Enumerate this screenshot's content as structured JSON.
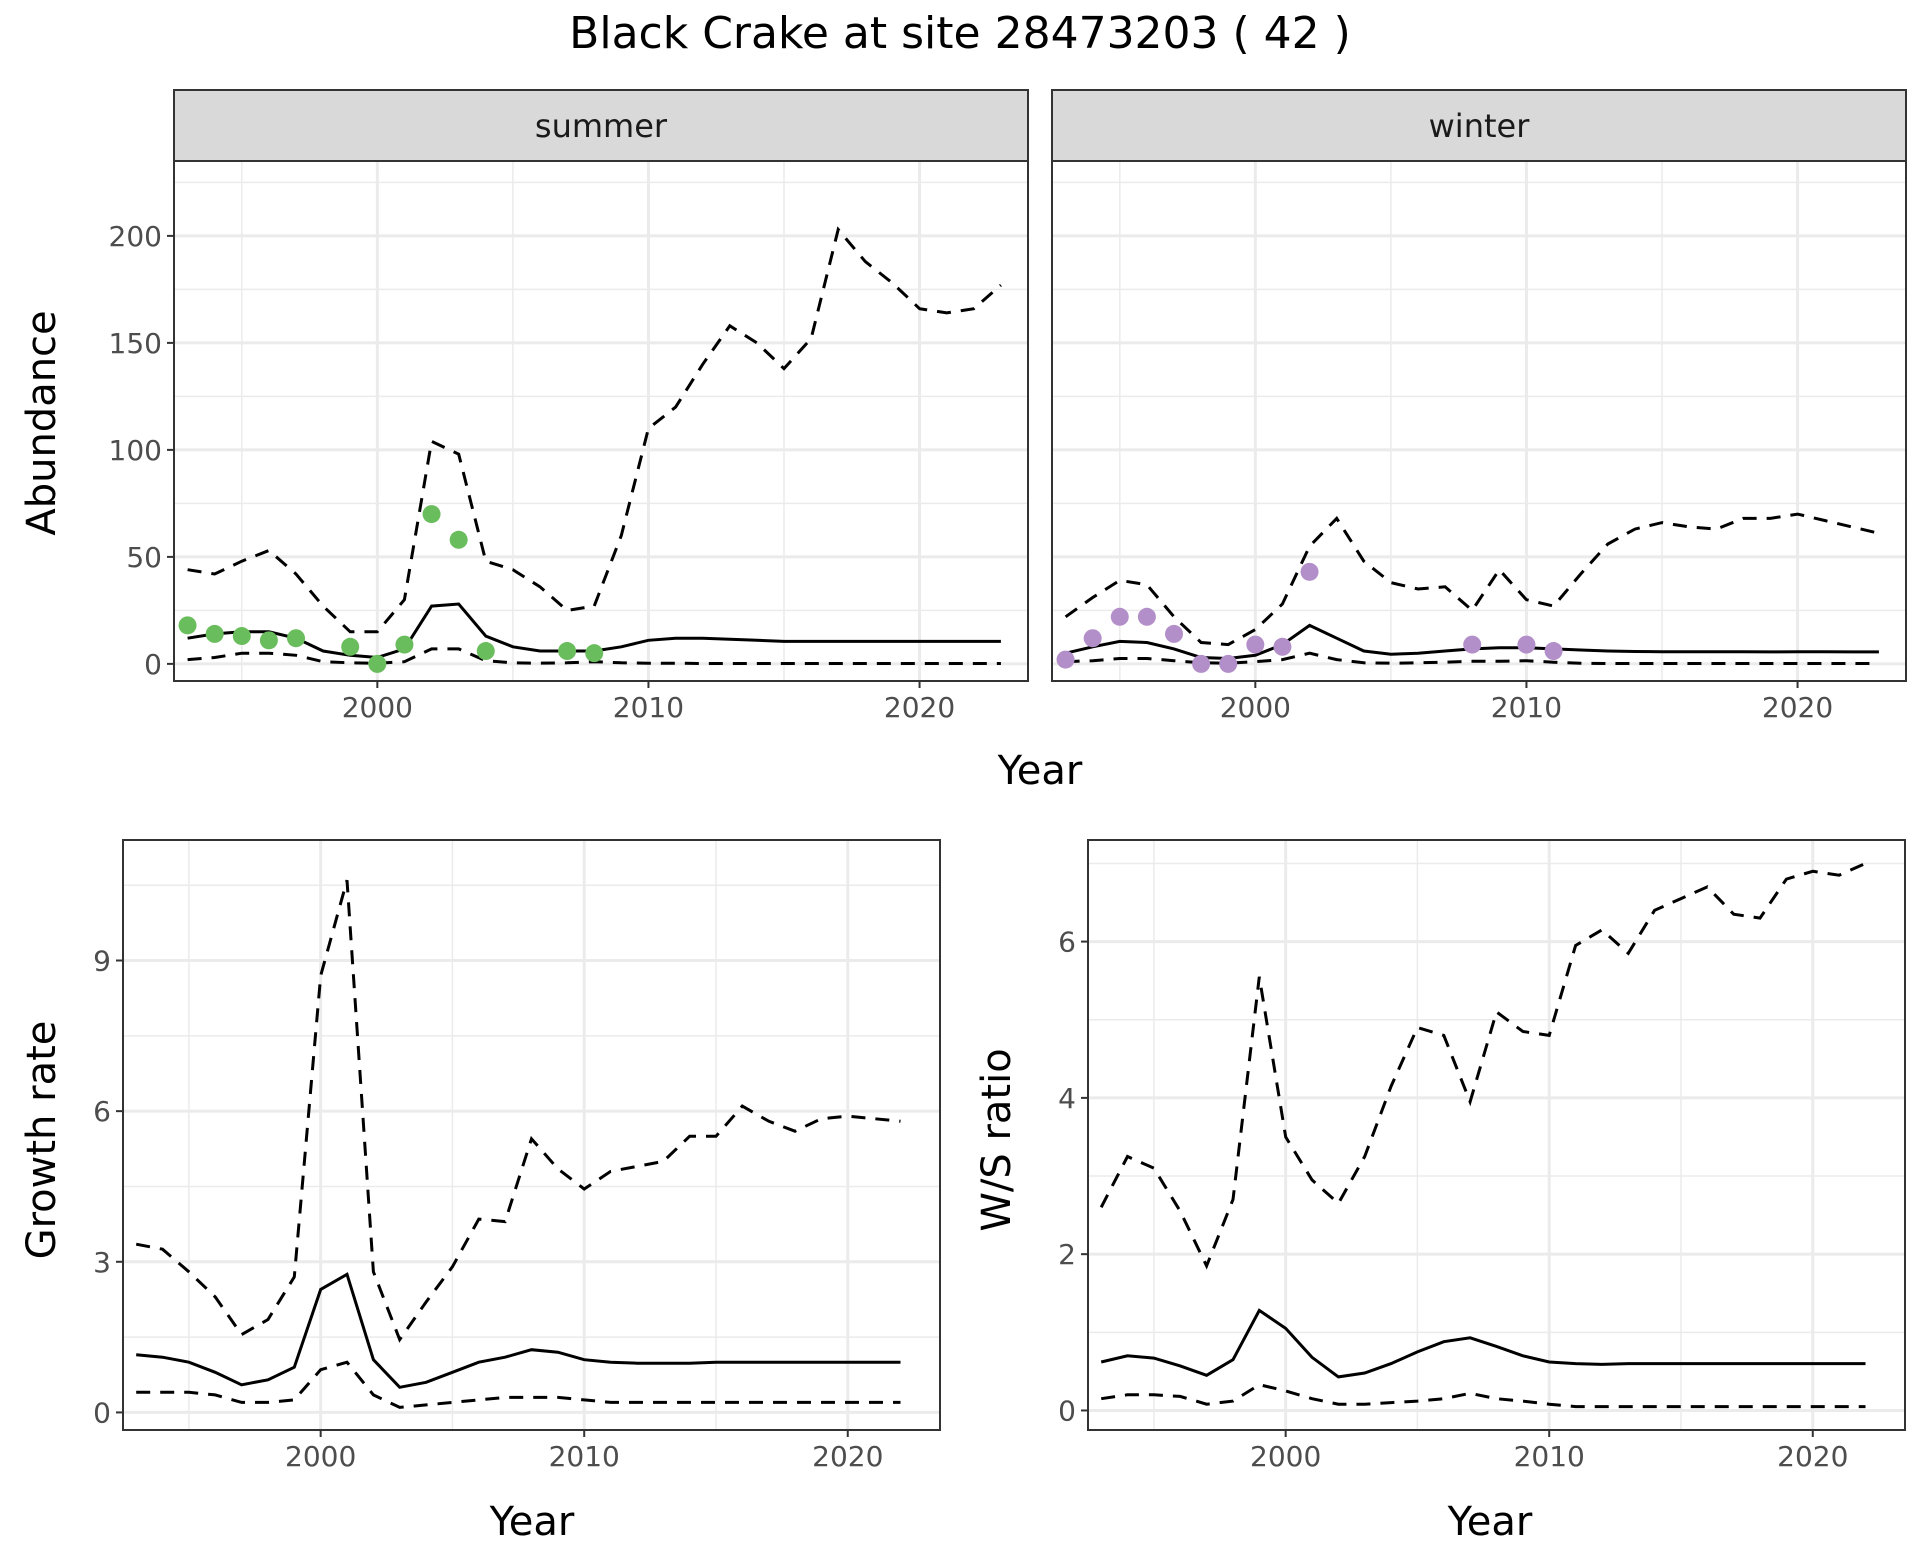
{
  "title": "Black Crake at site 28473203 ( 42 )",
  "colors": {
    "summer_points": "#6abd5c",
    "winter_points": "#b38fc9",
    "line": "#000000"
  },
  "chart_data": [
    {
      "type": "line",
      "facet": "summer",
      "xlabel": "Year",
      "ylabel": "Abundance",
      "xlim": [
        1992.5,
        2024
      ],
      "ylim": [
        -8,
        235
      ],
      "x_ticks": [
        2000,
        2010,
        2020
      ],
      "y_ticks": [
        0,
        50,
        100,
        150,
        200
      ],
      "grid": true,
      "series": [
        {
          "role": "estimate",
          "style": "solid",
          "x": [
            1993,
            1994,
            1995,
            1996,
            1997,
            1998,
            1999,
            2000,
            2001,
            2002,
            2003,
            2004,
            2005,
            2006,
            2007,
            2008,
            2009,
            2010,
            2011,
            2012,
            2013,
            2014,
            2015,
            2016,
            2017,
            2018,
            2019,
            2020,
            2021,
            2022,
            2023
          ],
          "y": [
            12,
            14,
            15,
            15,
            12,
            6,
            4,
            3,
            7,
            27,
            28,
            13,
            8,
            6,
            6,
            6,
            8,
            11,
            12,
            12,
            11.5,
            11,
            10.5,
            10.5,
            10.5,
            10.5,
            10.5,
            10.5,
            10.5,
            10.5,
            10.5
          ]
        },
        {
          "role": "upper",
          "style": "dashed",
          "x": [
            1993,
            1994,
            1995,
            1996,
            1997,
            1998,
            1999,
            2000,
            2001,
            2002,
            2003,
            2004,
            2005,
            2006,
            2007,
            2008,
            2009,
            2010,
            2011,
            2012,
            2013,
            2014,
            2015,
            2016,
            2017,
            2018,
            2019,
            2020,
            2021,
            2022,
            2023
          ],
          "y": [
            44,
            42,
            48,
            53,
            42,
            27,
            15,
            15,
            30,
            104,
            98,
            48,
            44,
            36,
            25,
            27,
            60,
            110,
            120,
            140,
            158,
            150,
            138,
            152,
            203,
            188,
            178,
            166,
            164,
            166,
            177
          ]
        },
        {
          "role": "lower",
          "style": "dashed",
          "x": [
            1993,
            1994,
            1995,
            1996,
            1997,
            1998,
            1999,
            2000,
            2001,
            2002,
            2003,
            2004,
            2005,
            2006,
            2007,
            2008,
            2009,
            2010,
            2011,
            2012,
            2013,
            2014,
            2015,
            2016,
            2017,
            2018,
            2019,
            2020,
            2021,
            2022,
            2023
          ],
          "y": [
            2,
            3,
            5,
            5,
            4,
            1,
            0.5,
            0.3,
            1,
            7,
            7,
            1.5,
            0.5,
            0.3,
            0.5,
            1,
            0.5,
            0.3,
            0.3,
            0.2,
            0.2,
            0.2,
            0.2,
            0.2,
            0.2,
            0.2,
            0.2,
            0.2,
            0.2,
            0.2,
            0.2
          ]
        },
        {
          "role": "observed",
          "style": "points",
          "x": [
            1993,
            1994,
            1995,
            1996,
            1997,
            1999,
            2000,
            2001,
            2002,
            2003,
            2004,
            2007,
            2008
          ],
          "y": [
            18,
            14,
            13,
            11,
            12,
            8,
            0,
            9,
            70,
            58,
            6,
            6,
            5
          ]
        }
      ]
    },
    {
      "type": "line",
      "facet": "winter",
      "xlabel": "Year",
      "ylabel": "Abundance",
      "xlim": [
        1992.5,
        2024
      ],
      "ylim": [
        -8,
        235
      ],
      "x_ticks": [
        2000,
        2010,
        2020
      ],
      "y_ticks": [
        0,
        50,
        100,
        150,
        200
      ],
      "grid": true,
      "series": [
        {
          "role": "estimate",
          "style": "solid",
          "x": [
            1993,
            1994,
            1995,
            1996,
            1997,
            1998,
            1999,
            2000,
            2001,
            2002,
            2003,
            2004,
            2005,
            2006,
            2007,
            2008,
            2009,
            2010,
            2011,
            2012,
            2013,
            2014,
            2015,
            2016,
            2017,
            2018,
            2019,
            2020,
            2021,
            2022,
            2023
          ],
          "y": [
            5,
            8,
            10.5,
            10,
            7,
            3,
            2.5,
            4,
            9,
            18,
            12,
            6,
            4.5,
            5,
            6,
            7,
            7.5,
            7.5,
            7,
            6.5,
            6,
            5.8,
            5.7,
            5.7,
            5.7,
            5.7,
            5.6,
            5.7,
            5.7,
            5.6,
            5.6
          ]
        },
        {
          "role": "upper",
          "style": "dashed",
          "x": [
            1993,
            1994,
            1995,
            1996,
            1997,
            1998,
            1999,
            2000,
            2001,
            2002,
            2003,
            2004,
            2005,
            2006,
            2007,
            2008,
            2009,
            2010,
            2011,
            2012,
            2013,
            2014,
            2015,
            2016,
            2017,
            2018,
            2019,
            2020,
            2021,
            2022,
            2023
          ],
          "y": [
            22,
            31,
            39,
            37,
            22,
            10,
            9,
            16,
            28,
            55,
            68,
            48,
            38,
            35,
            36,
            25,
            44,
            30,
            27,
            42,
            56,
            63,
            66,
            64,
            63,
            68,
            68,
            70,
            67,
            64,
            61
          ]
        },
        {
          "role": "lower",
          "style": "dashed",
          "x": [
            1993,
            1994,
            1995,
            1996,
            1997,
            1998,
            1999,
            2000,
            2001,
            2002,
            2003,
            2004,
            2005,
            2006,
            2007,
            2008,
            2009,
            2010,
            2011,
            2012,
            2013,
            2014,
            2015,
            2016,
            2017,
            2018,
            2019,
            2020,
            2021,
            2022,
            2023
          ],
          "y": [
            1,
            1.5,
            2.5,
            2.5,
            1.5,
            0.5,
            0.3,
            1,
            2,
            5,
            2,
            0.5,
            0.3,
            0.5,
            0.8,
            1.2,
            1.2,
            1.5,
            0.8,
            0.3,
            0.2,
            0.2,
            0.2,
            0.2,
            0.2,
            0.2,
            0.2,
            0.2,
            0.2,
            0.2,
            0.2
          ]
        },
        {
          "role": "observed",
          "style": "points",
          "x": [
            1993,
            1994,
            1995,
            1996,
            1997,
            1998,
            1999,
            2000,
            2001,
            2002,
            2008,
            2010,
            2011
          ],
          "y": [
            2,
            12,
            22,
            22,
            14,
            0,
            0,
            9,
            8,
            43,
            9,
            9,
            6
          ]
        }
      ]
    },
    {
      "type": "line",
      "xlabel": "Year",
      "ylabel": "Growth rate",
      "xlim": [
        1992.5,
        2023.5
      ],
      "ylim": [
        -0.35,
        11.4
      ],
      "x_ticks": [
        2000,
        2010,
        2020
      ],
      "y_ticks": [
        0,
        3,
        6,
        9
      ],
      "grid": true,
      "series": [
        {
          "role": "estimate",
          "style": "solid",
          "x": [
            1993,
            1994,
            1995,
            1996,
            1997,
            1998,
            1999,
            2000,
            2001,
            2002,
            2003,
            2004,
            2005,
            2006,
            2007,
            2008,
            2009,
            2010,
            2011,
            2012,
            2013,
            2014,
            2015,
            2016,
            2017,
            2018,
            2019,
            2020,
            2021,
            2022
          ],
          "y": [
            1.15,
            1.1,
            1.0,
            0.8,
            0.55,
            0.65,
            0.9,
            2.45,
            2.75,
            1.05,
            0.5,
            0.6,
            0.8,
            1.0,
            1.1,
            1.25,
            1.2,
            1.05,
            1.0,
            0.98,
            0.98,
            0.98,
            1.0,
            1.0,
            1.0,
            1.0,
            1.0,
            1.0,
            1.0,
            1.0
          ]
        },
        {
          "role": "upper",
          "style": "dashed",
          "x": [
            1993,
            1994,
            1995,
            1996,
            1997,
            1998,
            1999,
            2000,
            2001,
            2002,
            2003,
            2004,
            2005,
            2006,
            2007,
            2008,
            2009,
            2010,
            2011,
            2012,
            2013,
            2014,
            2015,
            2016,
            2017,
            2018,
            2019,
            2020,
            2021,
            2022
          ],
          "y": [
            3.35,
            3.25,
            2.8,
            2.3,
            1.55,
            1.85,
            2.7,
            8.7,
            10.6,
            2.8,
            1.45,
            2.2,
            2.9,
            3.85,
            3.8,
            5.45,
            4.85,
            4.45,
            4.8,
            4.9,
            5.0,
            5.5,
            5.5,
            6.1,
            5.8,
            5.6,
            5.85,
            5.9,
            5.85,
            5.8
          ]
        },
        {
          "role": "lower",
          "style": "dashed",
          "x": [
            1993,
            1994,
            1995,
            1996,
            1997,
            1998,
            1999,
            2000,
            2001,
            2002,
            2003,
            2004,
            2005,
            2006,
            2007,
            2008,
            2009,
            2010,
            2011,
            2012,
            2013,
            2014,
            2015,
            2016,
            2017,
            2018,
            2019,
            2020,
            2021,
            2022
          ],
          "y": [
            0.4,
            0.4,
            0.4,
            0.35,
            0.2,
            0.2,
            0.25,
            0.85,
            1.0,
            0.35,
            0.1,
            0.15,
            0.2,
            0.25,
            0.3,
            0.3,
            0.3,
            0.25,
            0.2,
            0.2,
            0.2,
            0.2,
            0.2,
            0.2,
            0.2,
            0.2,
            0.2,
            0.2,
            0.2,
            0.2
          ]
        }
      ]
    },
    {
      "type": "line",
      "xlabel": "Year",
      "ylabel": "W/S ratio",
      "xlim": [
        1992.5,
        2023.5
      ],
      "ylim": [
        -0.25,
        7.3
      ],
      "x_ticks": [
        2000,
        2010,
        2020
      ],
      "y_ticks": [
        0,
        2,
        4,
        6
      ],
      "grid": true,
      "series": [
        {
          "role": "estimate",
          "style": "solid",
          "x": [
            1993,
            1994,
            1995,
            1996,
            1997,
            1998,
            1999,
            2000,
            2001,
            2002,
            2003,
            2004,
            2005,
            2006,
            2007,
            2008,
            2009,
            2010,
            2011,
            2012,
            2013,
            2014,
            2015,
            2016,
            2017,
            2018,
            2019,
            2020,
            2021,
            2022
          ],
          "y": [
            0.62,
            0.7,
            0.67,
            0.57,
            0.45,
            0.65,
            1.28,
            1.05,
            0.68,
            0.43,
            0.48,
            0.6,
            0.75,
            0.88,
            0.93,
            0.82,
            0.7,
            0.62,
            0.6,
            0.59,
            0.6,
            0.6,
            0.6,
            0.6,
            0.6,
            0.6,
            0.6,
            0.6,
            0.6,
            0.6
          ]
        },
        {
          "role": "upper",
          "style": "dashed",
          "x": [
            1993,
            1994,
            1995,
            1996,
            1997,
            1998,
            1999,
            2000,
            2001,
            2002,
            2003,
            2004,
            2005,
            2006,
            2007,
            2008,
            2009,
            2010,
            2011,
            2012,
            2013,
            2014,
            2015,
            2016,
            2017,
            2018,
            2019,
            2020,
            2021,
            2022
          ],
          "y": [
            2.6,
            3.25,
            3.1,
            2.55,
            1.85,
            2.7,
            5.55,
            3.5,
            2.95,
            2.65,
            3.25,
            4.15,
            4.9,
            4.8,
            3.95,
            5.1,
            4.85,
            4.8,
            5.95,
            6.15,
            5.85,
            6.4,
            6.55,
            6.7,
            6.35,
            6.3,
            6.8,
            6.9,
            6.85,
            7.0
          ]
        },
        {
          "role": "lower",
          "style": "dashed",
          "x": [
            1993,
            1994,
            1995,
            1996,
            1997,
            1998,
            1999,
            2000,
            2001,
            2002,
            2003,
            2004,
            2005,
            2006,
            2007,
            2008,
            2009,
            2010,
            2011,
            2012,
            2013,
            2014,
            2015,
            2016,
            2017,
            2018,
            2019,
            2020,
            2021,
            2022
          ],
          "y": [
            0.15,
            0.2,
            0.2,
            0.18,
            0.08,
            0.12,
            0.33,
            0.25,
            0.15,
            0.08,
            0.08,
            0.1,
            0.12,
            0.15,
            0.22,
            0.15,
            0.12,
            0.08,
            0.05,
            0.05,
            0.05,
            0.05,
            0.05,
            0.05,
            0.05,
            0.05,
            0.05,
            0.05,
            0.05,
            0.05
          ]
        }
      ]
    }
  ]
}
